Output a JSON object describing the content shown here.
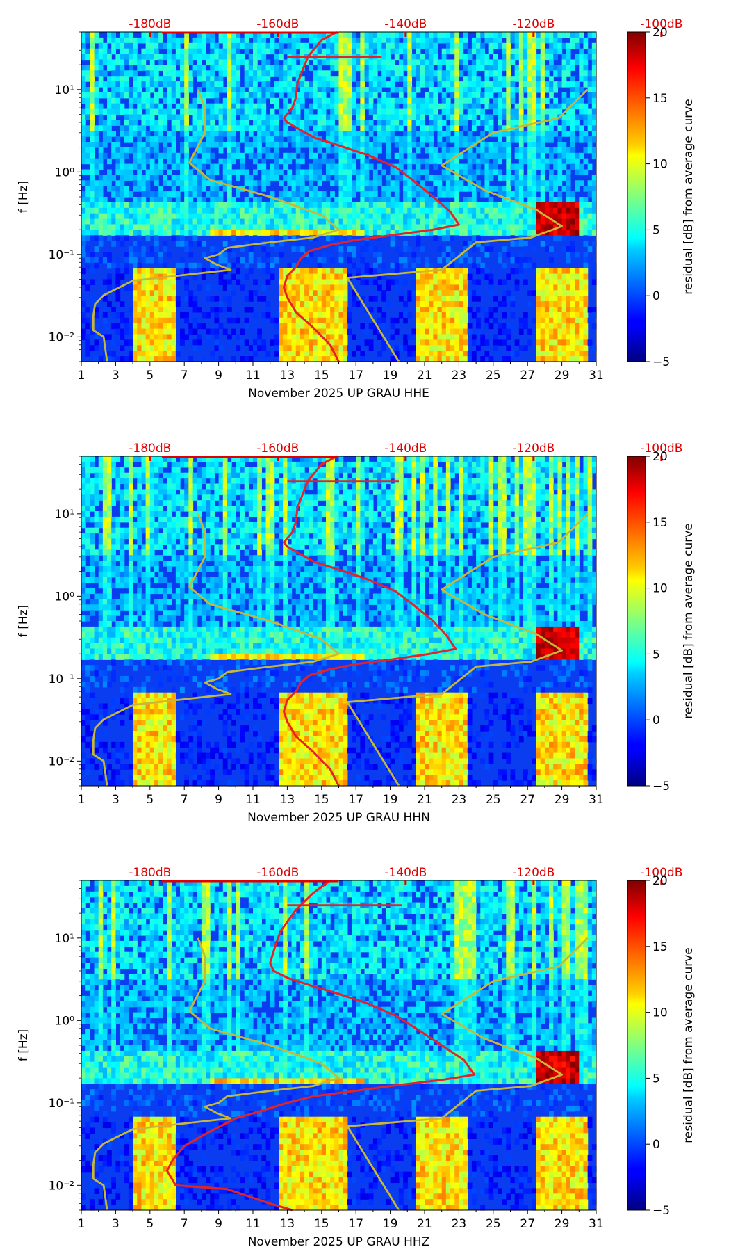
{
  "colors": {
    "nlnm_curve": "#e4222a",
    "peterson_model": "#c8b83a",
    "top_scale_text": "#e00000",
    "axis": "#000000"
  },
  "shared": {
    "ylabel": "f [Hz]",
    "x_tick_labels": [
      "1",
      "3",
      "5",
      "7",
      "9",
      "11",
      "13",
      "15",
      "17",
      "19",
      "21",
      "23",
      "25",
      "27",
      "29",
      "31"
    ],
    "y_tick_labels": [
      "10⁻²",
      "10⁻¹",
      "10⁰",
      "10¹"
    ],
    "top_db_labels": [
      "-180dB",
      "-160dB",
      "-140dB",
      "-120dB",
      "-100dB"
    ],
    "colorbar_label": "residual [dB] from average curve",
    "colorbar_ticks": [
      "−5",
      "0",
      "5",
      "10",
      "15",
      "20"
    ]
  },
  "panels": [
    {
      "xlabel": "November 2025 UP GRAU  HHE"
    },
    {
      "xlabel": "November 2025 UP GRAU  HHN"
    },
    {
      "xlabel": "November 2025 UP GRAU  HHZ"
    }
  ],
  "chart_data": [
    {
      "type": "heatmap",
      "title": "",
      "xlabel": "November 2025 UP GRAU  HHE",
      "ylabel": "f [Hz]",
      "xlim": [
        1,
        31
      ],
      "ylim": [
        0.005,
        50
      ],
      "y_scale": "log",
      "x_ticks": [
        1,
        3,
        5,
        7,
        9,
        11,
        13,
        15,
        17,
        19,
        21,
        23,
        25,
        27,
        29,
        31
      ],
      "top_axis": {
        "ticks_dB": [
          -180,
          -160,
          -140,
          -120,
          -100
        ],
        "labels": [
          "-180dB",
          "-160dB",
          "-140dB",
          "-120dB",
          "-100dB"
        ]
      },
      "colorbar": {
        "label": "residual [dB] from average curve",
        "range": [
          -5,
          20
        ],
        "ticks": [
          -5,
          0,
          5,
          10,
          15,
          20
        ],
        "colormap": "jet"
      },
      "series": [
        {
          "name": "",
          "color": "#e4222a",
          "points": [
            [
              15.9,
              50
            ],
            [
              15,
              40
            ],
            [
              14.2,
              25
            ],
            [
              13.6,
              12
            ],
            [
              13.5,
              8
            ],
            [
              13.3,
              6
            ],
            [
              12.8,
              4.5
            ],
            [
              13.0,
              4.0
            ],
            [
              13.7,
              3.3
            ],
            [
              14.6,
              2.6
            ],
            [
              16.0,
              2.1
            ],
            [
              17.7,
              1.6
            ],
            [
              19.3,
              1.15
            ],
            [
              20.3,
              0.8
            ],
            [
              21.5,
              0.5
            ],
            [
              22.5,
              0.33
            ],
            [
              23.0,
              0.23
            ],
            [
              21.5,
              0.2
            ],
            [
              19.0,
              0.17
            ],
            [
              17.0,
              0.15
            ],
            [
              15.5,
              0.13
            ],
            [
              14.3,
              0.11
            ],
            [
              13.8,
              0.09
            ],
            [
              13.5,
              0.07
            ],
            [
              13.0,
              0.055
            ],
            [
              12.8,
              0.04
            ],
            [
              13.0,
              0.03
            ],
            [
              13.5,
              0.02
            ],
            [
              14.5,
              0.013
            ],
            [
              15.5,
              0.008
            ],
            [
              16.0,
              0.005
            ]
          ]
        },
        {
          "name": "",
          "color": "#c8b83a",
          "points": [
            [
              7.8,
              10
            ],
            [
              8.2,
              6
            ],
            [
              8.2,
              3
            ],
            [
              7.3,
              1.3
            ],
            [
              8.5,
              0.8
            ],
            [
              12,
              0.5
            ],
            [
              15,
              0.3
            ],
            [
              16.0,
              0.2
            ],
            [
              14.5,
              0.16
            ],
            [
              12,
              0.14
            ],
            [
              9.5,
              0.12
            ],
            [
              9,
              0.1
            ],
            [
              8.2,
              0.09
            ],
            [
              8.9,
              0.075
            ],
            [
              9.7,
              0.065
            ],
            [
              4,
              0.048
            ],
            [
              2.3,
              0.032
            ],
            [
              1.8,
              0.025
            ],
            [
              1.7,
              0.018
            ],
            [
              1.7,
              0.012
            ],
            [
              2.3,
              0.01
            ],
            [
              2.5,
              0.005
            ]
          ]
        },
        {
          "name": "",
          "color": "#c8b83a",
          "points": [
            [
              30.5,
              10
            ],
            [
              28.8,
              4.5
            ],
            [
              25,
              3
            ],
            [
              22.0,
              1.2
            ],
            [
              24.5,
              0.6
            ],
            [
              27.5,
              0.35
            ],
            [
              29.0,
              0.22
            ],
            [
              27.2,
              0.16
            ],
            [
              24,
              0.14
            ],
            [
              22,
              0.065
            ],
            [
              16.5,
              0.052
            ],
            [
              19.5,
              0.005
            ]
          ]
        },
        {
          "name": "",
          "color": "#e4222a",
          "points": [
            [
              13,
              25
            ],
            [
              18.5,
              25
            ]
          ]
        }
      ]
    },
    {
      "type": "heatmap",
      "title": "",
      "xlabel": "November 2025 UP GRAU  HHN",
      "ylabel": "f [Hz]",
      "xlim": [
        1,
        31
      ],
      "ylim": [
        0.005,
        50
      ],
      "y_scale": "log",
      "x_ticks": [
        1,
        3,
        5,
        7,
        9,
        11,
        13,
        15,
        17,
        19,
        21,
        23,
        25,
        27,
        29,
        31
      ],
      "top_axis": {
        "ticks_dB": [
          -180,
          -160,
          -140,
          -120,
          -100
        ],
        "labels": [
          "-180dB",
          "-160dB",
          "-140dB",
          "-120dB",
          "-100dB"
        ]
      },
      "colorbar": {
        "label": "residual [dB] from average curve",
        "range": [
          -5,
          20
        ],
        "ticks": [
          -5,
          0,
          5,
          10,
          15,
          20
        ],
        "colormap": "jet"
      },
      "series": [
        {
          "name": "",
          "color": "#e4222a",
          "points": [
            [
              15.9,
              50
            ],
            [
              15,
              40
            ],
            [
              14.2,
              25
            ],
            [
              13.6,
              12
            ],
            [
              13.5,
              8
            ],
            [
              13.3,
              6
            ],
            [
              12.8,
              4.5
            ],
            [
              13.0,
              4.0
            ],
            [
              13.7,
              3.3
            ],
            [
              14.6,
              2.6
            ],
            [
              16.0,
              2.1
            ],
            [
              17.7,
              1.6
            ],
            [
              19.3,
              1.15
            ],
            [
              20.3,
              0.8
            ],
            [
              21.5,
              0.5
            ],
            [
              22.3,
              0.33
            ],
            [
              22.8,
              0.23
            ],
            [
              21.3,
              0.2
            ],
            [
              19.0,
              0.17
            ],
            [
              17.0,
              0.15
            ],
            [
              15.5,
              0.13
            ],
            [
              14.3,
              0.11
            ],
            [
              13.8,
              0.09
            ],
            [
              13.5,
              0.07
            ],
            [
              13.0,
              0.055
            ],
            [
              12.8,
              0.04
            ],
            [
              13.0,
              0.03
            ],
            [
              13.5,
              0.02
            ],
            [
              14.5,
              0.013
            ],
            [
              15.5,
              0.008
            ],
            [
              16.0,
              0.005
            ]
          ]
        },
        {
          "name": "",
          "color": "#c8b83a",
          "points": [
            [
              7.8,
              10
            ],
            [
              8.2,
              6
            ],
            [
              8.2,
              3
            ],
            [
              7.3,
              1.3
            ],
            [
              8.5,
              0.8
            ],
            [
              12,
              0.5
            ],
            [
              15,
              0.3
            ],
            [
              16.0,
              0.2
            ],
            [
              14.5,
              0.16
            ],
            [
              12,
              0.14
            ],
            [
              9.5,
              0.12
            ],
            [
              9,
              0.1
            ],
            [
              8.2,
              0.09
            ],
            [
              8.9,
              0.075
            ],
            [
              9.7,
              0.065
            ],
            [
              4,
              0.048
            ],
            [
              2.3,
              0.032
            ],
            [
              1.8,
              0.025
            ],
            [
              1.7,
              0.018
            ],
            [
              1.7,
              0.012
            ],
            [
              2.3,
              0.01
            ],
            [
              2.5,
              0.005
            ]
          ]
        },
        {
          "name": "",
          "color": "#c8b83a",
          "points": [
            [
              30.5,
              10
            ],
            [
              28.8,
              4.5
            ],
            [
              25,
              3
            ],
            [
              22.0,
              1.2
            ],
            [
              24.5,
              0.6
            ],
            [
              27.5,
              0.35
            ],
            [
              29.0,
              0.22
            ],
            [
              27.2,
              0.16
            ],
            [
              24,
              0.14
            ],
            [
              22,
              0.065
            ],
            [
              16.5,
              0.052
            ],
            [
              19.5,
              0.005
            ]
          ]
        },
        {
          "name": "",
          "color": "#e4222a",
          "points": [
            [
              13,
              25
            ],
            [
              19.5,
              25
            ]
          ]
        }
      ]
    },
    {
      "type": "heatmap",
      "title": "",
      "xlabel": "November 2025 UP GRAU  HHZ",
      "ylabel": "f [Hz]",
      "xlim": [
        1,
        31
      ],
      "ylim": [
        0.005,
        50
      ],
      "y_scale": "log",
      "x_ticks": [
        1,
        3,
        5,
        7,
        9,
        11,
        13,
        15,
        17,
        19,
        21,
        23,
        25,
        27,
        29,
        31
      ],
      "top_axis": {
        "ticks_dB": [
          -180,
          -160,
          -140,
          -120,
          -100
        ],
        "labels": [
          "-180dB",
          "-160dB",
          "-140dB",
          "-120dB",
          "-100dB"
        ]
      },
      "colorbar": {
        "label": "residual [dB] from average curve",
        "range": [
          -5,
          20
        ],
        "ticks": [
          -5,
          0,
          5,
          10,
          15,
          20
        ],
        "colormap": "jet"
      },
      "series": [
        {
          "name": "",
          "color": "#e4222a",
          "points": [
            [
              15.5,
              50
            ],
            [
              14.5,
              35
            ],
            [
              13.5,
              22
            ],
            [
              12.6,
              12
            ],
            [
              12.3,
              8
            ],
            [
              12.0,
              5
            ],
            [
              12.2,
              4.0
            ],
            [
              13.0,
              3.3
            ],
            [
              14.5,
              2.6
            ],
            [
              16.0,
              2.1
            ],
            [
              17.7,
              1.6
            ],
            [
              19.3,
              1.15
            ],
            [
              20.5,
              0.8
            ],
            [
              22.0,
              0.5
            ],
            [
              23.3,
              0.33
            ],
            [
              23.9,
              0.22
            ],
            [
              22.0,
              0.19
            ],
            [
              19.0,
              0.16
            ],
            [
              17.0,
              0.14
            ],
            [
              14.5,
              0.12
            ],
            [
              13.0,
              0.1
            ],
            [
              11.5,
              0.08
            ],
            [
              10.0,
              0.065
            ],
            [
              8.5,
              0.045
            ],
            [
              7.0,
              0.03
            ],
            [
              6.3,
              0.02
            ],
            [
              6.0,
              0.015
            ],
            [
              6.5,
              0.01
            ],
            [
              9.5,
              0.009
            ],
            [
              12.0,
              0.006
            ],
            [
              13.3,
              0.005
            ]
          ]
        },
        {
          "name": "",
          "color": "#c8b83a",
          "points": [
            [
              7.8,
              10
            ],
            [
              8.2,
              6
            ],
            [
              8.2,
              3
            ],
            [
              7.3,
              1.3
            ],
            [
              8.5,
              0.8
            ],
            [
              12,
              0.5
            ],
            [
              15,
              0.3
            ],
            [
              16.0,
              0.2
            ],
            [
              14.5,
              0.16
            ],
            [
              12,
              0.14
            ],
            [
              9.5,
              0.12
            ],
            [
              9,
              0.1
            ],
            [
              8.2,
              0.09
            ],
            [
              8.9,
              0.075
            ],
            [
              9.7,
              0.065
            ],
            [
              4,
              0.048
            ],
            [
              2.3,
              0.032
            ],
            [
              1.8,
              0.025
            ],
            [
              1.7,
              0.018
            ],
            [
              1.7,
              0.012
            ],
            [
              2.3,
              0.01
            ],
            [
              2.5,
              0.005
            ]
          ]
        },
        {
          "name": "",
          "color": "#c8b83a",
          "points": [
            [
              30.5,
              10
            ],
            [
              28.8,
              4.5
            ],
            [
              25,
              3
            ],
            [
              22.0,
              1.2
            ],
            [
              24.5,
              0.6
            ],
            [
              27.5,
              0.35
            ],
            [
              29.0,
              0.22
            ],
            [
              27.2,
              0.16
            ],
            [
              24,
              0.14
            ],
            [
              22,
              0.065
            ],
            [
              16.5,
              0.052
            ],
            [
              19.5,
              0.005
            ]
          ]
        },
        {
          "name": "",
          "color": "#e4222a",
          "points": [
            [
              13,
              25
            ],
            [
              19.7,
              25
            ]
          ]
        }
      ]
    }
  ]
}
